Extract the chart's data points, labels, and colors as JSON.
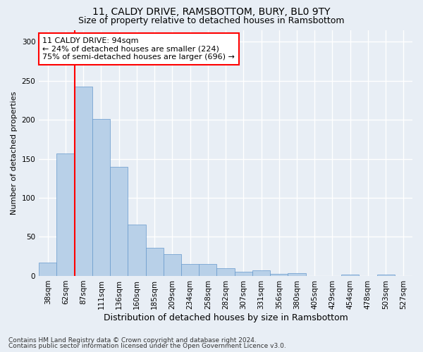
{
  "title1": "11, CALDY DRIVE, RAMSBOTTOM, BURY, BL0 9TY",
  "title2": "Size of property relative to detached houses in Ramsbottom",
  "xlabel": "Distribution of detached houses by size in Ramsbottom",
  "ylabel": "Number of detached properties",
  "categories": [
    "38sqm",
    "62sqm",
    "87sqm",
    "111sqm",
    "136sqm",
    "160sqm",
    "185sqm",
    "209sqm",
    "234sqm",
    "258sqm",
    "282sqm",
    "307sqm",
    "331sqm",
    "356sqm",
    "380sqm",
    "405sqm",
    "429sqm",
    "454sqm",
    "478sqm",
    "503sqm",
    "527sqm"
  ],
  "values": [
    17,
    157,
    242,
    201,
    140,
    66,
    36,
    28,
    15,
    15,
    10,
    5,
    7,
    3,
    4,
    0,
    0,
    2,
    0,
    2,
    0
  ],
  "bar_color": "#b8d0e8",
  "bar_edge_color": "#6699cc",
  "vline_color": "red",
  "vline_x_index": 1.5,
  "annotation_text": "11 CALDY DRIVE: 94sqm\n← 24% of detached houses are smaller (224)\n75% of semi-detached houses are larger (696) →",
  "annotation_box_color": "white",
  "annotation_box_edge": "red",
  "ylim": [
    0,
    315
  ],
  "yticks": [
    0,
    50,
    100,
    150,
    200,
    250,
    300
  ],
  "footer1": "Contains HM Land Registry data © Crown copyright and database right 2024.",
  "footer2": "Contains public sector information licensed under the Open Government Licence v3.0.",
  "background_color": "#e8eef5",
  "plot_bg_color": "#e8eef5",
  "title1_fontsize": 10,
  "title2_fontsize": 9,
  "xlabel_fontsize": 9,
  "ylabel_fontsize": 8,
  "tick_fontsize": 7.5,
  "annotation_fontsize": 8,
  "footer_fontsize": 6.5,
  "grid_color": "#ffffff",
  "grid_linewidth": 1.0
}
